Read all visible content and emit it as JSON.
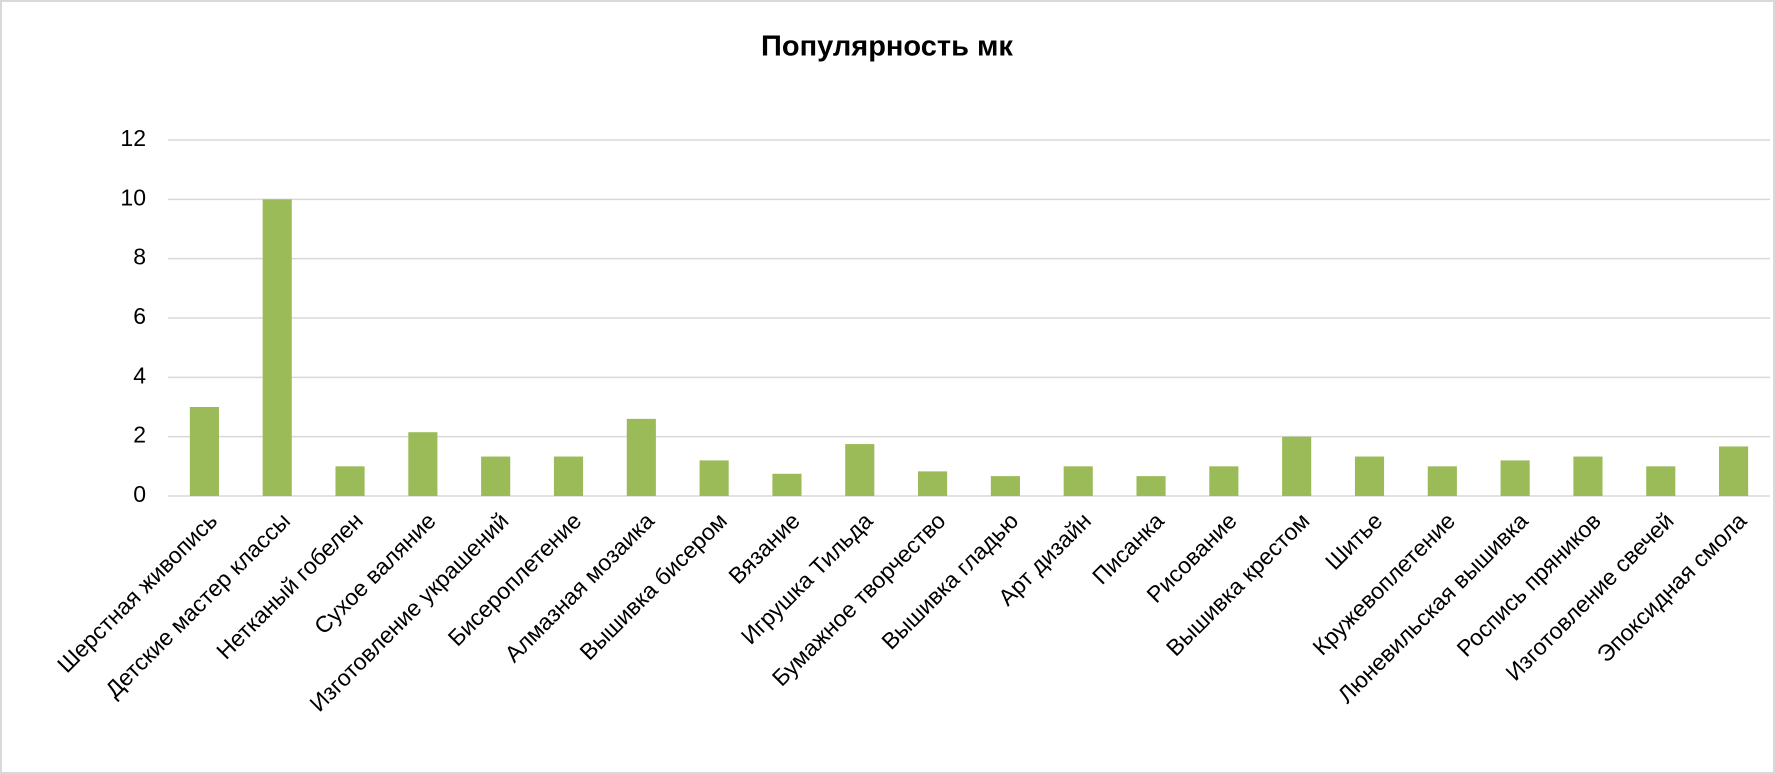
{
  "chart_data": {
    "type": "bar",
    "title": "Популярность мк",
    "categories": [
      "Шерстная живопись",
      "Детские мастер классы",
      "Нетканый гобелен",
      "Сухое валяние",
      "Изготовление украшений",
      "Бисероплетение",
      "Алмазная мозаика",
      "Вышивка бисером",
      "Вязание",
      "Игрушка Тильда",
      "Бумажное творчество",
      "Вышивка гладью",
      "Арт дизайн",
      "Писанка",
      "Рисование",
      "Вышивка крестом",
      "Шитье",
      "Кружевоплетение",
      "Люневильская вышивка",
      "Роспись пряников",
      "Изготовление свечей",
      "Эпоксидная смола"
    ],
    "values": [
      3,
      10,
      1,
      2.15,
      1.33,
      1.33,
      2.6,
      1.2,
      0.75,
      1.75,
      0.83,
      0.67,
      1,
      0.67,
      1,
      2,
      1.33,
      1,
      1.2,
      1.33,
      1,
      1.67
    ],
    "color": "#9bbb59",
    "ylim": [
      0,
      12
    ],
    "yticks": [
      0,
      2,
      4,
      6,
      8,
      10,
      12
    ],
    "grid": true
  }
}
